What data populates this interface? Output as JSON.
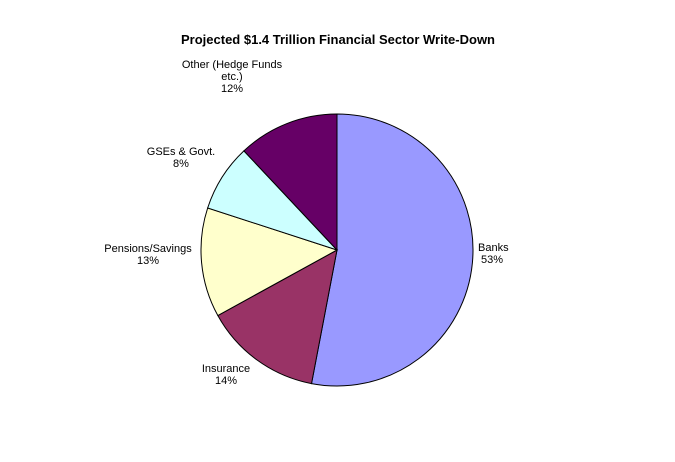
{
  "chart_data": {
    "type": "pie",
    "title": "Projected $1.4 Trillion Financial Sector Write-Down",
    "slices": [
      {
        "label": [
          "Banks"
        ],
        "pct_text": "53%",
        "value": 53,
        "color": "#9999ff"
      },
      {
        "label": [
          "Insurance"
        ],
        "pct_text": "14%",
        "value": 14,
        "color": "#993366"
      },
      {
        "label": [
          "Pensions/Savings"
        ],
        "pct_text": "13%",
        "value": 13,
        "color": "#ffffcc"
      },
      {
        "label": [
          "GSEs & Govt."
        ],
        "pct_text": "8%",
        "value": 8,
        "color": "#ccffff"
      },
      {
        "label": [
          "Other (Hedge Funds",
          "etc.)"
        ],
        "pct_text": "12%",
        "value": 12,
        "color": "#660066"
      }
    ],
    "start_angle_deg": 0,
    "direction": "clockwise",
    "data_labels": "outside",
    "legend": "none",
    "background": "#ffffff"
  }
}
